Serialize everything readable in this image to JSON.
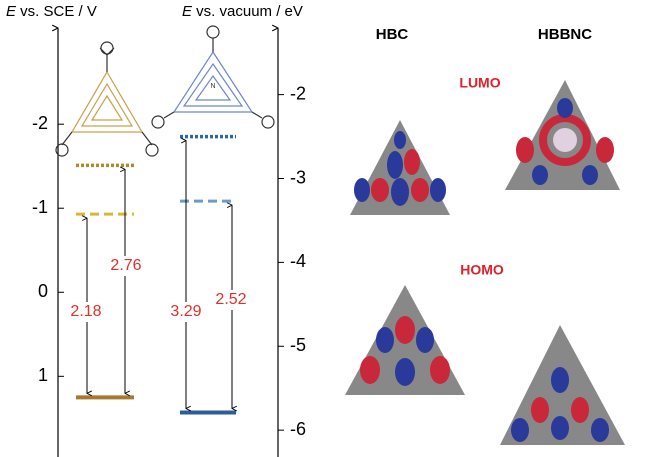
{
  "left_axis": {
    "label_symbol": "E",
    "label_text": " vs. SCE / V",
    "lim": [
      -3.18,
      1.96
    ],
    "ticks": [
      -2,
      -1,
      0,
      1
    ]
  },
  "right_axis": {
    "label_symbol": "E",
    "label_text": " vs. vacuum / eV",
    "lim": [
      -1.17,
      -6.32
    ],
    "ticks": [
      -2,
      -3,
      -4,
      -5,
      -6
    ]
  },
  "molecules": [
    {
      "name": "HBC",
      "lumo_dotted": -1.51,
      "lumo_dashed": -0.93,
      "homo": 1.25,
      "gap_dashed": 2.18,
      "gap_dotted": 2.76,
      "colors": {
        "dotted": "#b08a2a",
        "dashed": "#d9b830",
        "solid": "#a8782c"
      }
    },
    {
      "name": "HBBNC",
      "lumo_dotted": -2.5,
      "lumo_dashed": -3.27,
      "homo": -5.79,
      "gap_dotted": 3.29,
      "gap_dashed": 2.52,
      "colors": {
        "dotted": "#2a66a8",
        "dashed": "#6a9ad0",
        "solid": "#2a5e9a"
      }
    }
  ],
  "orbitals": {
    "lumo": "LUMO",
    "homo": "HOMO"
  }
}
